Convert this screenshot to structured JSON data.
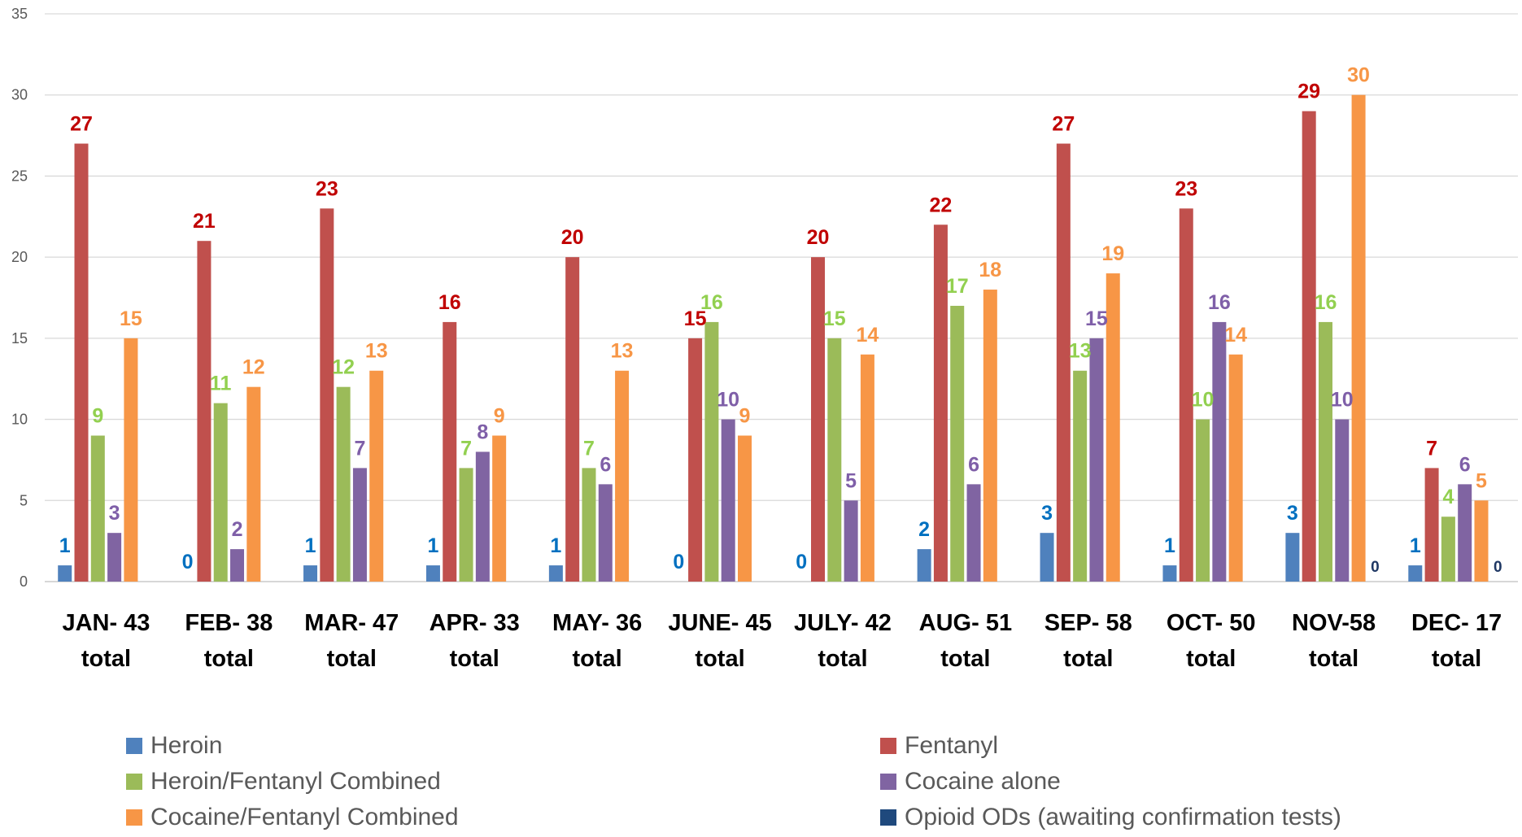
{
  "chart_data": {
    "type": "bar",
    "categories": [
      [
        "JAN- 43",
        "total"
      ],
      [
        "FEB- 38",
        "total"
      ],
      [
        "MAR- 47",
        "total"
      ],
      [
        "APR- 33",
        "total"
      ],
      [
        "MAY- 36",
        "total"
      ],
      [
        "JUNE- 45",
        "total"
      ],
      [
        "JULY-  42",
        "total"
      ],
      [
        "AUG- 51",
        "total"
      ],
      [
        "SEP- 58",
        "total"
      ],
      [
        "OCT- 50",
        "total"
      ],
      [
        "NOV-58",
        "total"
      ],
      [
        "DEC-  17",
        "total"
      ]
    ],
    "ylim": [
      0,
      35
    ],
    "yticks": [
      0,
      5,
      10,
      15,
      20,
      25,
      30,
      35
    ],
    "grid": true,
    "legend_position": "bottom",
    "series": [
      {
        "name": "Heroin",
        "color": "#4F81BD",
        "label_color": "#0070C0",
        "values": [
          1,
          0,
          1,
          1,
          1,
          0,
          0,
          2,
          3,
          1,
          3,
          1
        ]
      },
      {
        "name": "Fentanyl",
        "color": "#C0504D",
        "label_color": "#C00000",
        "values": [
          27,
          21,
          23,
          16,
          20,
          15,
          20,
          22,
          27,
          23,
          29,
          7
        ]
      },
      {
        "name": "Heroin/Fentanyl Combined",
        "color": "#9BBB59",
        "label_color": "#92D050",
        "values": [
          9,
          11,
          12,
          7,
          7,
          16,
          15,
          17,
          13,
          10,
          16,
          4
        ]
      },
      {
        "name": "Cocaine alone",
        "color": "#8064A2",
        "label_color": "#7F5FA8",
        "values": [
          3,
          2,
          7,
          8,
          6,
          10,
          5,
          6,
          15,
          16,
          10,
          6
        ]
      },
      {
        "name": "Cocaine/Fentanyl Combined",
        "color": "#F79646",
        "label_color": "#F79646",
        "values": [
          15,
          12,
          13,
          9,
          13,
          9,
          14,
          18,
          19,
          14,
          30,
          5
        ]
      },
      {
        "name": "Opioid ODs (awaiting confirmation tests)",
        "color": "#1F497D",
        "label_color": "#1F3864",
        "values": [
          null,
          null,
          null,
          null,
          null,
          null,
          null,
          null,
          null,
          null,
          0,
          0
        ]
      }
    ]
  }
}
